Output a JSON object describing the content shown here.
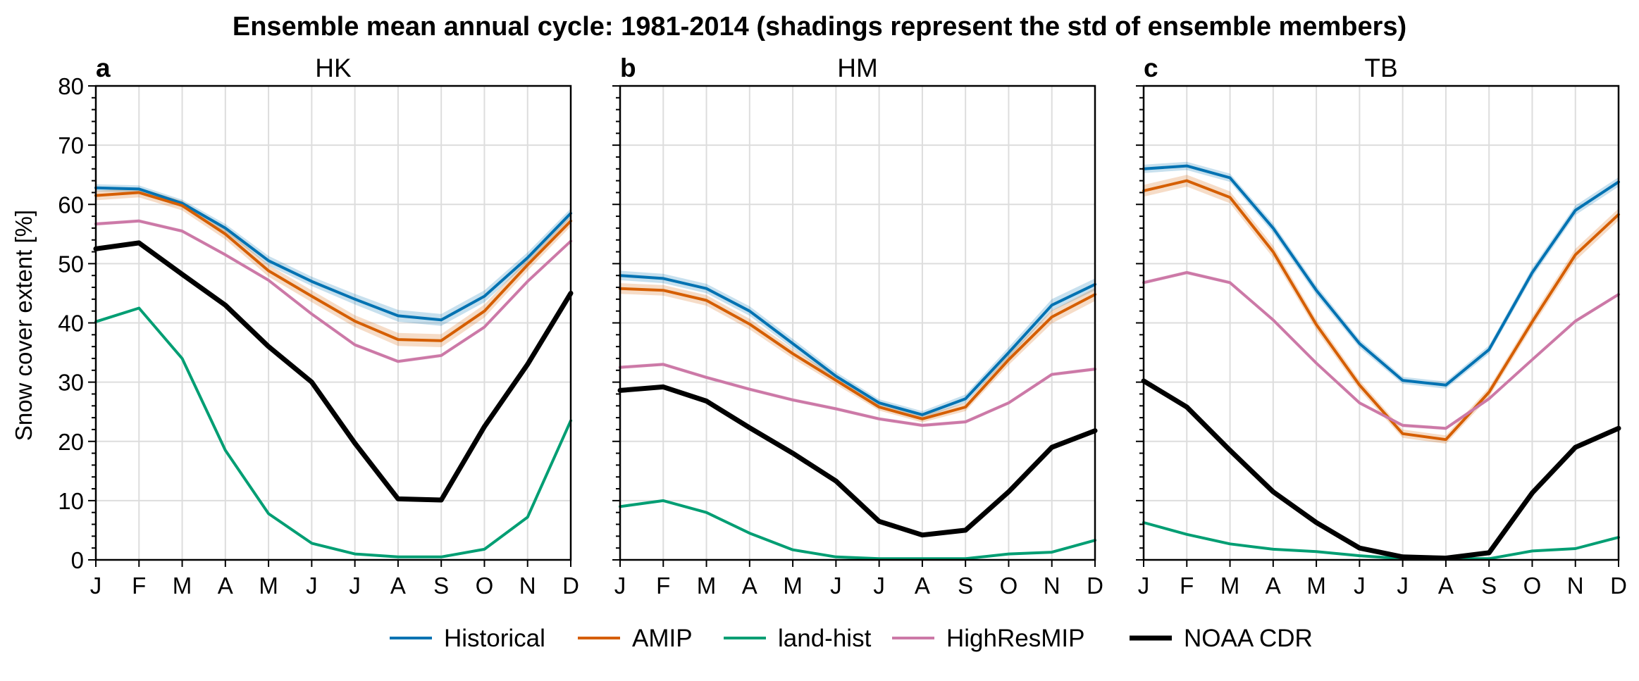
{
  "title": "Ensemble mean annual cycle: 1981-2014 (shadings represent the std of ensemble members)",
  "chart_data": {
    "type": "line",
    "ylabel": "Snow cover extent [%]",
    "ylim": [
      0,
      80
    ],
    "yticks": [
      "0",
      "10",
      "20",
      "30",
      "40",
      "50",
      "60",
      "70",
      "80"
    ],
    "categories": [
      "J",
      "F",
      "M",
      "A",
      "M",
      "J",
      "J",
      "A",
      "S",
      "O",
      "N",
      "D"
    ],
    "grid": true,
    "legend_position": "bottom",
    "series_styles": [
      {
        "name": "Historical",
        "color": "#0072b2",
        "width": 4
      },
      {
        "name": "AMIP",
        "color": "#d55e00",
        "width": 4
      },
      {
        "name": "land-hist",
        "color": "#009e73",
        "width": 4
      },
      {
        "name": "HighResMIP",
        "color": "#cc79a7",
        "width": 4
      },
      {
        "name": "NOAA CDR",
        "color": "#000000",
        "width": 7
      }
    ],
    "panels": [
      {
        "letter": "a",
        "title": "HK",
        "series": [
          {
            "name": "Historical",
            "values": [
              62.8,
              62.6,
              60.2,
              56.0,
              50.5,
              47.0,
              44.0,
              41.2,
              40.5,
              44.5,
              51.0,
              58.5
            ],
            "std": [
              0.6,
              0.6,
              0.6,
              0.7,
              0.8,
              0.8,
              0.9,
              1.0,
              1.0,
              1.0,
              0.9,
              0.8
            ]
          },
          {
            "name": "AMIP",
            "values": [
              61.5,
              62.0,
              59.8,
              55.0,
              48.8,
              44.5,
              40.3,
              37.2,
              37.0,
              42.0,
              49.8,
              57.2
            ],
            "std": [
              0.8,
              0.8,
              0.8,
              0.9,
              1.0,
              1.0,
              1.0,
              1.1,
              1.1,
              1.1,
              1.0,
              0.9
            ]
          },
          {
            "name": "land-hist",
            "values": [
              40.2,
              42.5,
              34.0,
              18.5,
              7.8,
              2.8,
              1.0,
              0.5,
              0.5,
              1.8,
              7.2,
              23.5
            ],
            "std": [
              0,
              0,
              0,
              0,
              0,
              0,
              0,
              0,
              0,
              0,
              0,
              0
            ]
          },
          {
            "name": "HighResMIP",
            "values": [
              56.7,
              57.2,
              55.5,
              51.5,
              47.2,
              41.5,
              36.3,
              33.5,
              34.5,
              39.3,
              47.0,
              53.8
            ],
            "std": [
              0.3,
              0.3,
              0.3,
              0.3,
              0.3,
              0.3,
              0.3,
              0.3,
              0.3,
              0.3,
              0.3,
              0.3
            ]
          },
          {
            "name": "NOAA CDR",
            "values": [
              52.5,
              53.5,
              48.2,
              43.0,
              36.0,
              30.0,
              19.7,
              10.3,
              10.1,
              22.5,
              33.0,
              45.0
            ],
            "std": [
              0,
              0,
              0,
              0,
              0,
              0,
              0,
              0,
              0,
              0,
              0,
              0
            ]
          }
        ]
      },
      {
        "letter": "b",
        "title": "HM",
        "series": [
          {
            "name": "Historical",
            "values": [
              48.0,
              47.5,
              45.8,
              42.0,
              36.5,
              31.0,
              26.5,
              24.5,
              27.2,
              35.0,
              43.0,
              46.5
            ],
            "std": [
              0.8,
              0.8,
              0.8,
              0.8,
              0.8,
              0.7,
              0.6,
              0.6,
              0.7,
              0.9,
              1.0,
              1.0
            ]
          },
          {
            "name": "AMIP",
            "values": [
              45.8,
              45.5,
              43.8,
              39.8,
              34.8,
              30.3,
              25.8,
              23.8,
              25.8,
              33.8,
              41.0,
              44.8
            ],
            "std": [
              0.9,
              0.9,
              0.9,
              0.9,
              0.8,
              0.7,
              0.6,
              0.6,
              0.7,
              0.9,
              1.1,
              1.1
            ]
          },
          {
            "name": "land-hist",
            "values": [
              9.0,
              10.0,
              8.0,
              4.5,
              1.7,
              0.5,
              0.2,
              0.2,
              0.2,
              1.0,
              1.3,
              3.3
            ],
            "std": [
              0,
              0,
              0,
              0,
              0,
              0,
              0,
              0,
              0,
              0,
              0,
              0
            ]
          },
          {
            "name": "HighResMIP",
            "values": [
              32.5,
              33.0,
              30.8,
              28.8,
              27.0,
              25.5,
              23.8,
              22.7,
              23.3,
              26.5,
              31.3,
              32.2
            ],
            "std": [
              0.3,
              0.3,
              0.3,
              0.3,
              0.3,
              0.3,
              0.3,
              0.3,
              0.3,
              0.3,
              0.3,
              0.3
            ]
          },
          {
            "name": "NOAA CDR",
            "values": [
              28.6,
              29.2,
              26.8,
              22.3,
              18.0,
              13.3,
              6.5,
              4.2,
              5.0,
              11.5,
              19.0,
              21.8
            ],
            "std": [
              0,
              0,
              0,
              0,
              0,
              0,
              0,
              0,
              0,
              0,
              0,
              0
            ]
          }
        ]
      },
      {
        "letter": "c",
        "title": "TB",
        "series": [
          {
            "name": "Historical",
            "values": [
              66.0,
              66.5,
              64.5,
              56.0,
              45.5,
              36.5,
              30.3,
              29.5,
              35.5,
              48.5,
              59.0,
              63.8
            ],
            "std": [
              0.7,
              0.7,
              0.7,
              0.8,
              0.8,
              0.7,
              0.6,
              0.6,
              0.7,
              0.8,
              0.8,
              0.8
            ]
          },
          {
            "name": "AMIP",
            "values": [
              62.3,
              64.0,
              61.2,
              52.0,
              39.7,
              29.5,
              21.3,
              20.3,
              28.3,
              40.2,
              51.5,
              58.3
            ],
            "std": [
              1.0,
              1.0,
              1.0,
              1.0,
              0.9,
              0.8,
              0.7,
              0.7,
              0.8,
              0.9,
              1.0,
              1.0
            ]
          },
          {
            "name": "land-hist",
            "values": [
              6.3,
              4.3,
              2.7,
              1.8,
              1.4,
              0.7,
              0.2,
              0.2,
              0.2,
              1.5,
              1.9,
              3.8
            ],
            "std": [
              0,
              0,
              0,
              0,
              0,
              0,
              0,
              0,
              0,
              0,
              0,
              0
            ]
          },
          {
            "name": "HighResMIP",
            "values": [
              46.8,
              48.5,
              46.8,
              40.5,
              33.2,
              26.5,
              22.7,
              22.2,
              27.2,
              33.8,
              40.3,
              44.8
            ],
            "std": [
              0.3,
              0.3,
              0.3,
              0.3,
              0.3,
              0.3,
              0.3,
              0.3,
              0.3,
              0.3,
              0.3,
              0.3
            ]
          },
          {
            "name": "NOAA CDR",
            "values": [
              30.2,
              25.8,
              18.5,
              11.5,
              6.3,
              2.0,
              0.5,
              0.3,
              1.2,
              11.3,
              19.0,
              22.2
            ],
            "std": [
              0,
              0,
              0,
              0,
              0,
              0,
              0,
              0,
              0,
              0,
              0,
              0
            ]
          }
        ]
      }
    ]
  }
}
